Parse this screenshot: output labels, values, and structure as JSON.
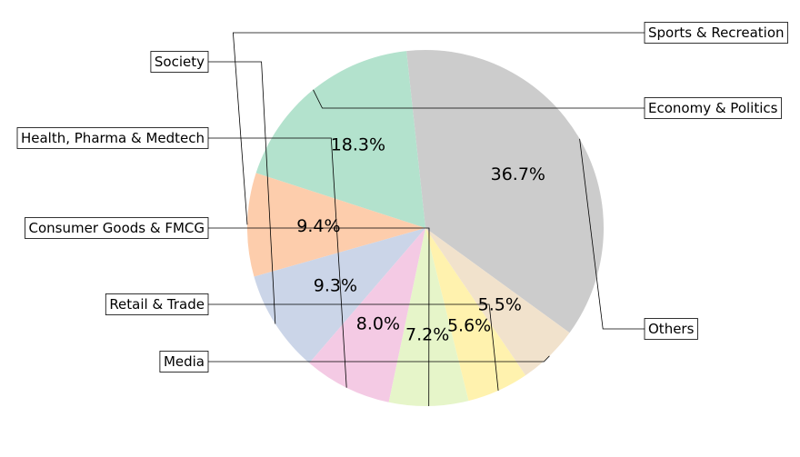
{
  "chart_data": {
    "type": "pie",
    "title": "",
    "slices": [
      {
        "label": "Others",
        "value": 36.7,
        "pct_label": "36.7%",
        "color": "#cccccc"
      },
      {
        "label": "Economy & Politics",
        "value": 18.3,
        "pct_label": "18.3%",
        "color": "#b3e2cd"
      },
      {
        "label": "Sports & Recreation",
        "value": 9.4,
        "pct_label": "9.4%",
        "color": "#fdcdac"
      },
      {
        "label": "Society",
        "value": 9.3,
        "pct_label": "9.3%",
        "color": "#cbd5e8"
      },
      {
        "label": "Health, Pharma & Medtech",
        "value": 8.0,
        "pct_label": "8.0%",
        "color": "#f4cae4"
      },
      {
        "label": "Consumer Goods & FMCG",
        "value": 7.2,
        "pct_label": "7.2%",
        "color": "#e6f5c9"
      },
      {
        "label": "Retail & Trade",
        "value": 5.6,
        "pct_label": "5.6%",
        "color": "#fff2ae"
      },
      {
        "label": "Media",
        "value": 5.5,
        "pct_label": "5.5%",
        "color": "#f1e2cc"
      }
    ]
  }
}
